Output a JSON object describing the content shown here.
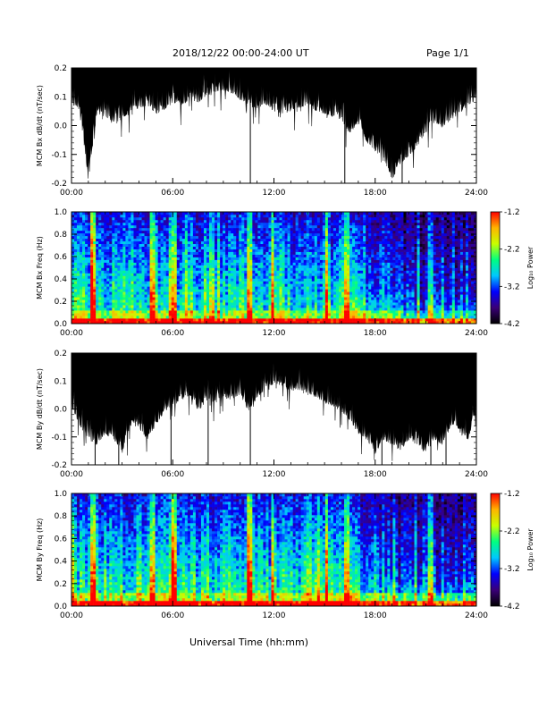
{
  "header": {
    "title": "2018/12/22  00:00-24:00 UT",
    "page": "Page 1/1"
  },
  "x_axis": {
    "label": "Universal Time (hh:mm)",
    "ticks": [
      "00:00",
      "06:00",
      "12:00",
      "18:00",
      "24:00"
    ]
  },
  "colorbar": {
    "label": "Log₁₀ Power",
    "ticks": [
      "-1.2",
      "-2.2",
      "-3.2",
      "-4.2"
    ],
    "range": [
      -4.2,
      -1.2
    ],
    "colormap": [
      "#000000",
      "#3a0078",
      "#0000ff",
      "#00c8ff",
      "#00ff80",
      "#c8ff00",
      "#ffb400",
      "#ff0000"
    ]
  },
  "chart_data": [
    {
      "type": "area",
      "panel": "bx-timeseries",
      "ylabel": "MCM Bx dB/dt (nT/sec)",
      "xlim": [
        0,
        24
      ],
      "ylim": [
        -0.2,
        0.2
      ],
      "yticks": [
        "0.2",
        "0.1",
        "0.0",
        "-0.1",
        "-0.2"
      ],
      "xticks": [
        "00:00",
        "06:00",
        "12:00",
        "18:00",
        "24:00"
      ],
      "fill_color": "#000000",
      "spikes_to_bottom_hours": [
        10.6,
        16.2,
        19.6
      ],
      "series": [
        {
          "x": [
            0,
            0.5,
            1,
            1.5,
            2,
            2.5,
            3,
            3.5,
            4,
            4.5,
            5,
            5.5,
            6,
            6.5,
            7,
            7.5,
            8,
            8.5,
            9,
            9.5,
            10,
            10.5,
            11,
            11.5,
            12,
            12.5,
            13,
            13.5,
            14,
            14.5,
            15,
            15.5,
            16,
            16.5,
            17,
            17.5,
            18,
            18.5,
            19,
            19.5,
            20,
            20.5,
            21,
            21.5,
            22,
            22.5,
            23,
            23.5,
            24
          ],
          "min": [
            0.08,
            0.06,
            -0.18,
            0.05,
            0.04,
            0.02,
            0.03,
            0.06,
            0.07,
            0.08,
            0.05,
            0.06,
            0.09,
            0.08,
            0.1,
            0.09,
            0.11,
            0.12,
            0.13,
            0.12,
            0.1,
            0.08,
            0.07,
            0.08,
            0.06,
            0.05,
            0.06,
            0.07,
            0.08,
            0.06,
            0.05,
            0.04,
            0.03,
            -0.02,
            0.02,
            -0.05,
            -0.08,
            -0.1,
            -0.18,
            -0.12,
            -0.1,
            -0.06,
            -0.02,
            0.02,
            0.0,
            0.03,
            0.05,
            0.08,
            0.1
          ]
        }
      ]
    },
    {
      "type": "heatmap",
      "panel": "bx-spectrogram",
      "ylabel": "MCM Bx Freq (Hz)",
      "xlim": [
        0,
        24
      ],
      "ylim": [
        0,
        1
      ],
      "yticks": [
        "1.0",
        "0.8",
        "0.6",
        "0.4",
        "0.2",
        "0.0"
      ],
      "xticks": [
        "00:00",
        "06:00",
        "12:00",
        "18:00",
        "24:00"
      ],
      "value_label": "Log10 Power",
      "vrange": [
        -4.2,
        -1.2
      ],
      "quiet_after_hours": 16.5,
      "bright_bands_hours": [
        1.3,
        4.8,
        6.1,
        10.6,
        11.9,
        15.1,
        16.3,
        21.3
      ]
    },
    {
      "type": "area",
      "panel": "by-timeseries",
      "ylabel": "MCM By dB/dt (nT/sec)",
      "xlim": [
        0,
        24
      ],
      "ylim": [
        -0.2,
        0.2
      ],
      "yticks": [
        "0.2",
        "0.1",
        "0.0",
        "-0.1",
        "-0.2"
      ],
      "xticks": [
        "00:00",
        "06:00",
        "12:00",
        "18:00",
        "24:00"
      ],
      "fill_color": "#000000",
      "spikes_to_bottom_hours": [
        1.4,
        2.8,
        5.9,
        8.1,
        10.6,
        18.4,
        21.3,
        22.2
      ],
      "series": [
        {
          "x": [
            0,
            0.5,
            1,
            1.5,
            2,
            2.5,
            3,
            3.5,
            4,
            4.5,
            5,
            5.5,
            6,
            6.5,
            7,
            7.5,
            8,
            8.5,
            9,
            9.5,
            10,
            10.5,
            11,
            11.5,
            12,
            12.5,
            13,
            13.5,
            14,
            14.5,
            15,
            15.5,
            16,
            16.5,
            17,
            17.5,
            18,
            18.5,
            19,
            19.5,
            20,
            20.5,
            21,
            21.5,
            22,
            22.5,
            23,
            23.5,
            24
          ],
          "min": [
            0.02,
            -0.05,
            -0.1,
            -0.12,
            -0.08,
            -0.1,
            -0.15,
            -0.05,
            -0.06,
            -0.1,
            -0.05,
            0.0,
            0.02,
            0.04,
            0.06,
            0.0,
            0.04,
            0.03,
            0.05,
            0.04,
            0.06,
            0.0,
            0.05,
            0.08,
            0.1,
            0.09,
            0.07,
            0.08,
            0.06,
            0.05,
            0.03,
            0.02,
            0.0,
            -0.03,
            -0.08,
            -0.1,
            -0.15,
            -0.1,
            -0.12,
            -0.14,
            -0.1,
            -0.12,
            -0.15,
            -0.1,
            -0.12,
            -0.05,
            -0.08,
            -0.1,
            0.0
          ]
        }
      ]
    },
    {
      "type": "heatmap",
      "panel": "by-spectrogram",
      "ylabel": "MCM By Freq (Hz)",
      "xlim": [
        0,
        24
      ],
      "ylim": [
        0,
        1
      ],
      "yticks": [
        "1.0",
        "0.8",
        "0.6",
        "0.4",
        "0.2",
        "0.0"
      ],
      "xticks": [
        "00:00",
        "06:00",
        "12:00",
        "18:00",
        "24:00"
      ],
      "value_label": "Log10 Power",
      "vrange": [
        -4.2,
        -1.2
      ],
      "quiet_after_hours": 16.5,
      "bright_bands_hours": [
        1.3,
        4.8,
        6.1,
        10.6,
        11.9,
        15.1,
        16.3,
        21.3
      ]
    }
  ]
}
